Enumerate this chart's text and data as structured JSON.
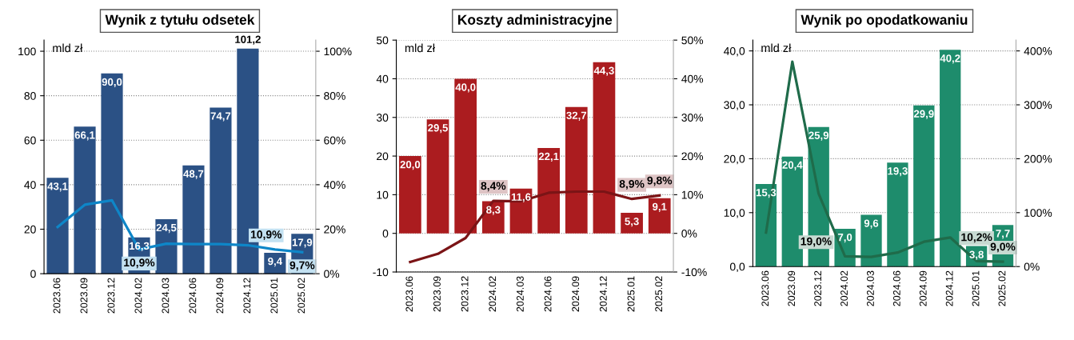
{
  "chart_data": [
    {
      "type": "bar",
      "title": "Wynik z tytułu odsetek",
      "ylabel": "mld zł",
      "categories": [
        "2023.06",
        "2023.09",
        "2023.12",
        "2024.02",
        "2024.03",
        "2024.06",
        "2024.09",
        "2024.12",
        "2025.01",
        "2025.02"
      ],
      "series": [
        {
          "color": "#2b5185",
          "values": [
            43.1,
            66.1,
            90.0,
            16.3,
            24.5,
            48.7,
            74.7,
            101.2,
            9.4,
            17.9
          ],
          "value_labels": [
            "43,1",
            "66,1",
            "90,0",
            "16,3",
            "24,5",
            "48,7",
            "74,7",
            "101,2",
            "9,4",
            "17,9"
          ]
        },
        {
          "type": "line",
          "axis": "y2",
          "color": "#0e86c8",
          "values": [
            21,
            31,
            33,
            10.9,
            13.5,
            13.3,
            13.3,
            12.8,
            10.9,
            9.7
          ],
          "value_labels": [
            null,
            null,
            null,
            "10,9%",
            null,
            null,
            null,
            null,
            "10,9%",
            "9,7%"
          ]
        }
      ],
      "ylim": [
        0,
        105
      ],
      "yticks": [
        0,
        20,
        40,
        60,
        80,
        100
      ],
      "y2lim": [
        0,
        105
      ],
      "y2ticks": [
        {
          "value": 0,
          "label": "0%"
        },
        {
          "value": 20,
          "label": "20%"
        },
        {
          "value": 40,
          "label": "40%"
        },
        {
          "value": 60,
          "label": "60%"
        },
        {
          "value": 80,
          "label": "80%"
        },
        {
          "value": 100,
          "label": "100%"
        }
      ],
      "grid": "y",
      "legend": false
    },
    {
      "type": "bar",
      "title": "Koszty administracyjne",
      "ylabel": "mld zł",
      "categories": [
        "2023.06",
        "2023.09",
        "2023.12",
        "2024.02",
        "2024.03",
        "2024.06",
        "2024.09",
        "2024.12",
        "2025.01",
        "2025.02"
      ],
      "series": [
        {
          "color": "#ab1c1f",
          "values": [
            20.0,
            29.5,
            40.0,
            8.3,
            11.6,
            22.1,
            32.7,
            44.3,
            5.3,
            9.1
          ],
          "value_labels": [
            "20,0",
            "29,5",
            "40,0",
            "8,3",
            "11,6",
            "22,1",
            "32,7",
            "44,3",
            "5,3",
            "9,1"
          ]
        },
        {
          "type": "line",
          "axis": "y2",
          "color": "#7b1416",
          "values": [
            -7.4,
            -5.3,
            -1.2,
            8.4,
            8.3,
            10.5,
            10.8,
            10.8,
            8.9,
            9.8
          ],
          "value_labels": [
            null,
            null,
            null,
            "8,4%",
            null,
            null,
            null,
            null,
            "8,9%",
            "9,8%"
          ]
        }
      ],
      "ylim": [
        -10,
        50
      ],
      "yticks": [
        -10,
        0,
        10,
        20,
        30,
        40,
        50
      ],
      "y2lim": [
        -10,
        50
      ],
      "y2ticks": [
        {
          "value": -10,
          "label": "-10%"
        },
        {
          "value": 0,
          "label": "0%"
        },
        {
          "value": 10,
          "label": "10%"
        },
        {
          "value": 20,
          "label": "20%"
        },
        {
          "value": 30,
          "label": "30%"
        },
        {
          "value": 40,
          "label": "40%"
        },
        {
          "value": 50,
          "label": "50%"
        }
      ],
      "grid": "y",
      "legend": false
    },
    {
      "type": "bar",
      "title": "Wynik po opodatkowaniu",
      "ylabel": "mld zł",
      "categories": [
        "2023.06",
        "2023.09",
        "2023.12",
        "2024.02",
        "2024.03",
        "2024.06",
        "2024.09",
        "2024.12",
        "2025.01",
        "2025.02"
      ],
      "series": [
        {
          "color": "#1e8c6c",
          "values": [
            15.3,
            20.4,
            25.9,
            7.0,
            9.6,
            19.3,
            29.9,
            40.2,
            3.8,
            7.7
          ],
          "value_labels": [
            "15,3",
            "20,4",
            "25,9",
            "7,0",
            "9,6",
            "19,3",
            "29,9",
            "40,2",
            "3,8",
            "7,7"
          ]
        },
        {
          "type": "line",
          "axis": "y2",
          "color": "#1f6b4a",
          "values": [
            63,
            380,
            135,
            19.0,
            18,
            26,
            46,
            54,
            10.2,
            9.0
          ],
          "value_labels": [
            null,
            null,
            null,
            "19,0%",
            null,
            null,
            null,
            null,
            "10,2%",
            "9,0%"
          ]
        }
      ],
      "ylim": [
        0,
        42
      ],
      "yticks": [
        {
          "value": 0,
          "label": "0,0"
        },
        {
          "value": 10,
          "label": "10,0"
        },
        {
          "value": 20,
          "label": "20,0"
        },
        {
          "value": 30,
          "label": "30,0"
        },
        {
          "value": 40,
          "label": "40,0"
        }
      ],
      "y2lim": [
        0,
        420
      ],
      "y2ticks": [
        {
          "value": 0,
          "label": "0%"
        },
        {
          "value": 100,
          "label": "100%"
        },
        {
          "value": 200,
          "label": "200%"
        },
        {
          "value": 300,
          "label": "300%"
        },
        {
          "value": 400,
          "label": "400%"
        }
      ],
      "grid": "y",
      "legend": false
    }
  ]
}
